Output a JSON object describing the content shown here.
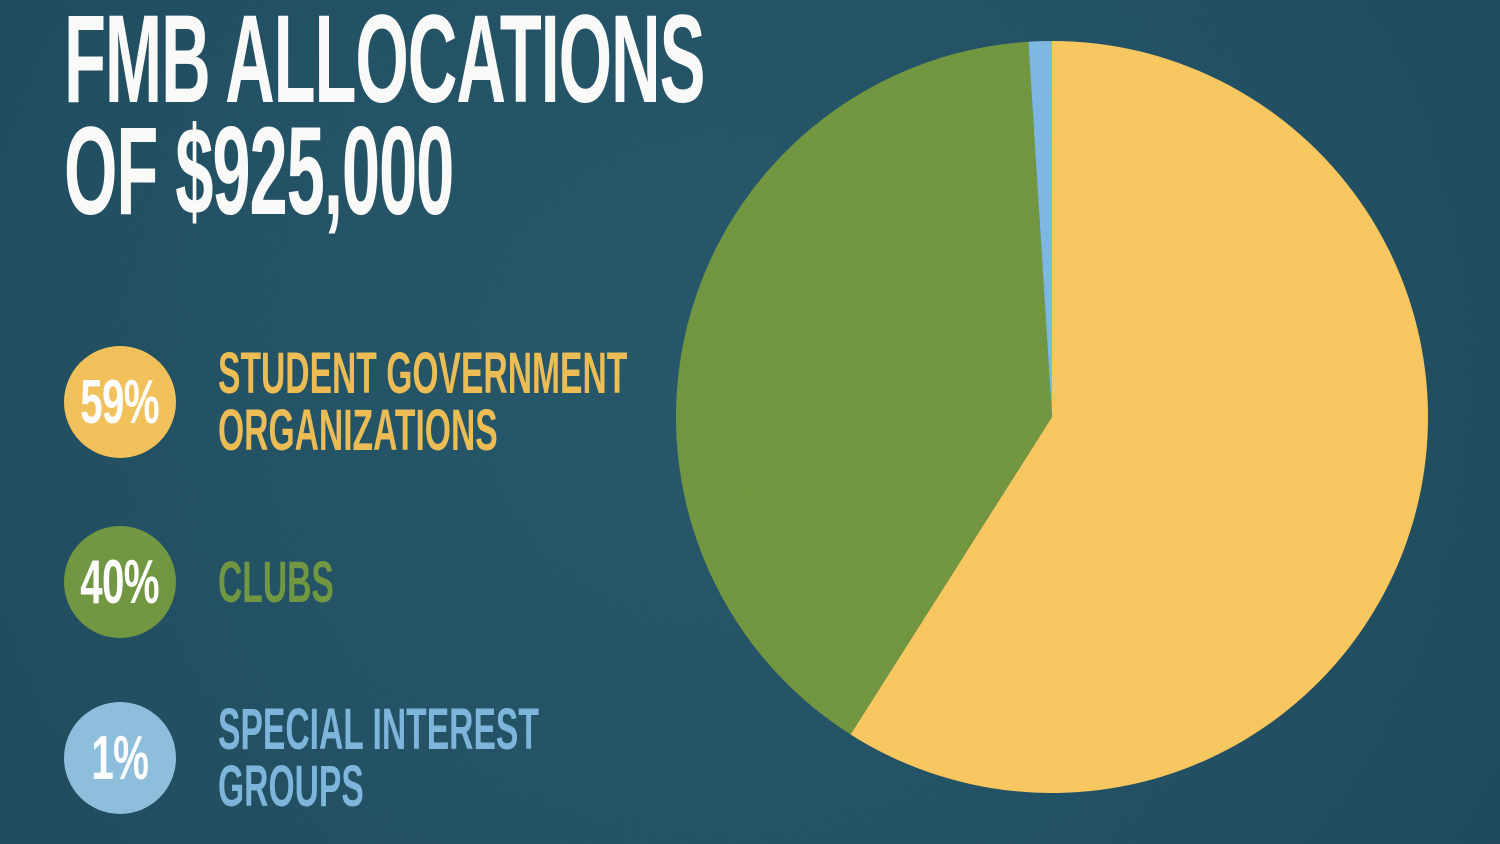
{
  "title": {
    "line1": "FMB ALLOCATIONS",
    "line2": "OF $925,000"
  },
  "legend": [
    {
      "pct": "59%",
      "label": "STUDENT GOVERNMENT ORGANIZATIONS",
      "color": "#F3C158",
      "text_color": "#EEBC52"
    },
    {
      "pct": "40%",
      "label": "CLUBS",
      "color": "#6F963E",
      "text_color": "#6F963E"
    },
    {
      "pct": "1%",
      "label": "SPECIAL INTEREST GROUPS",
      "color": "#8CBEDC",
      "text_color": "#7CB5DC"
    }
  ],
  "chart_data": {
    "type": "pie",
    "title": "FMB Allocations of $925,000",
    "total_amount": "$925,000",
    "slices": [
      {
        "label": "Student Government Organizations",
        "value": 59,
        "color": "#F9C75D"
      },
      {
        "label": "Clubs",
        "value": 40,
        "color": "#70953D"
      },
      {
        "label": "Special Interest Groups",
        "value": 1,
        "color": "#7CB7E2"
      }
    ],
    "start_angle_deg": 0,
    "direction": "clockwise",
    "legend_position": "left"
  },
  "colors": {
    "background": "#1F4F63",
    "title_text": "#FBFBF9",
    "percent_text": "#FFFFFF"
  }
}
